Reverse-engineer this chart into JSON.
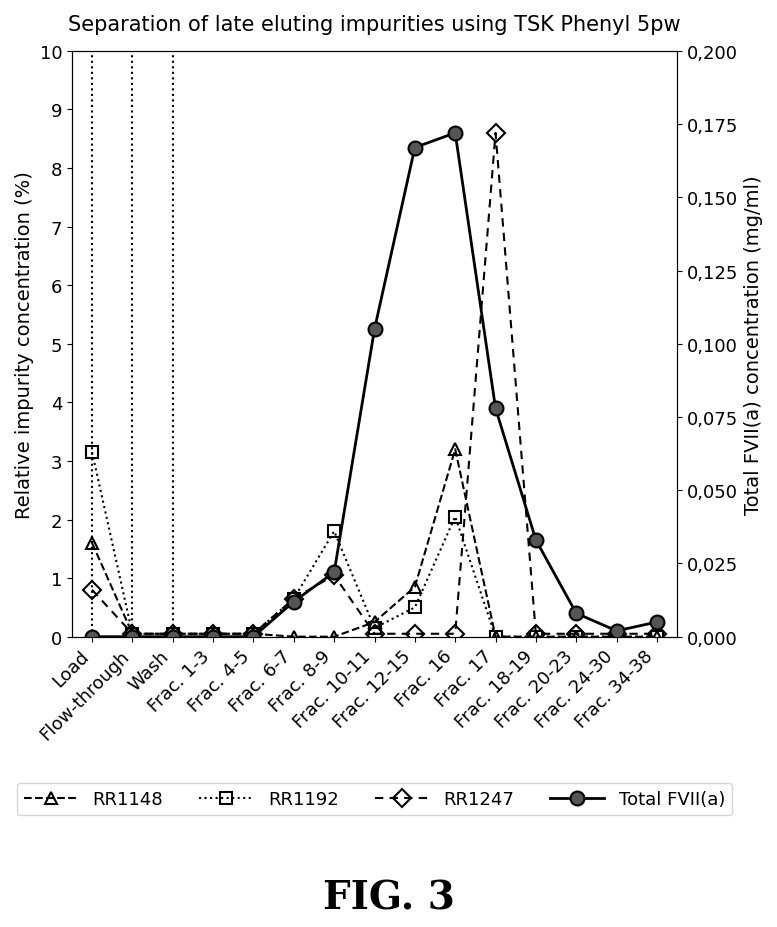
{
  "title": "Separation of late eluting impurities using TSK Phenyl 5pw",
  "xlabel": "",
  "ylabel_left": "Relative impurity concentration (%)",
  "ylabel_right": "Total FVII(a) concentration (mg/ml)",
  "categories": [
    "Load",
    "Flow-through",
    "Wash",
    "Frac. 1-3",
    "Frac. 4-5",
    "Frac. 6-7",
    "Frac. 8-9",
    "Frac. 10-11",
    "Frac. 12-15",
    "Frac. 16",
    "Frac. 17",
    "Frac. 18-19",
    "Frac. 20-23",
    "Frac. 24-30",
    "Frac. 34-38"
  ],
  "ylim_left": [
    0,
    10
  ],
  "ylim_right": [
    0,
    0.2
  ],
  "yticks_left": [
    0,
    1,
    2,
    3,
    4,
    5,
    6,
    7,
    8,
    9,
    10
  ],
  "yticks_right": [
    0.0,
    0.025,
    0.05,
    0.075,
    0.1,
    0.125,
    0.15,
    0.175,
    0.2
  ],
  "RR1148": [
    1.6,
    0.05,
    0.05,
    0.05,
    0.05,
    0.0,
    0.0,
    0.25,
    0.85,
    3.2,
    0.0,
    0.0,
    0.0,
    0.0,
    0.0
  ],
  "RR1192": [
    3.15,
    0.05,
    0.05,
    0.05,
    0.05,
    0.65,
    1.8,
    0.15,
    0.5,
    2.05,
    0.0,
    0.0,
    0.0,
    0.0,
    0.0
  ],
  "RR1247": [
    0.8,
    0.05,
    0.05,
    0.05,
    0.05,
    0.65,
    1.05,
    0.05,
    0.05,
    0.05,
    8.6,
    0.05,
    0.05,
    0.05,
    0.05
  ],
  "TotalFVIIa": [
    0.0,
    0.0,
    0.0,
    0.0,
    0.0,
    0.012,
    0.022,
    0.105,
    0.167,
    0.172,
    0.078,
    0.033,
    0.008,
    0.002,
    0.005
  ],
  "vline_positions": [
    1,
    2
  ],
  "legend_labels": [
    "RR1148",
    "RR1192",
    "RR1247",
    "Total FVII(a)"
  ],
  "fig_width": 21.95,
  "fig_height": 26.19,
  "background_color": "#ffffff"
}
